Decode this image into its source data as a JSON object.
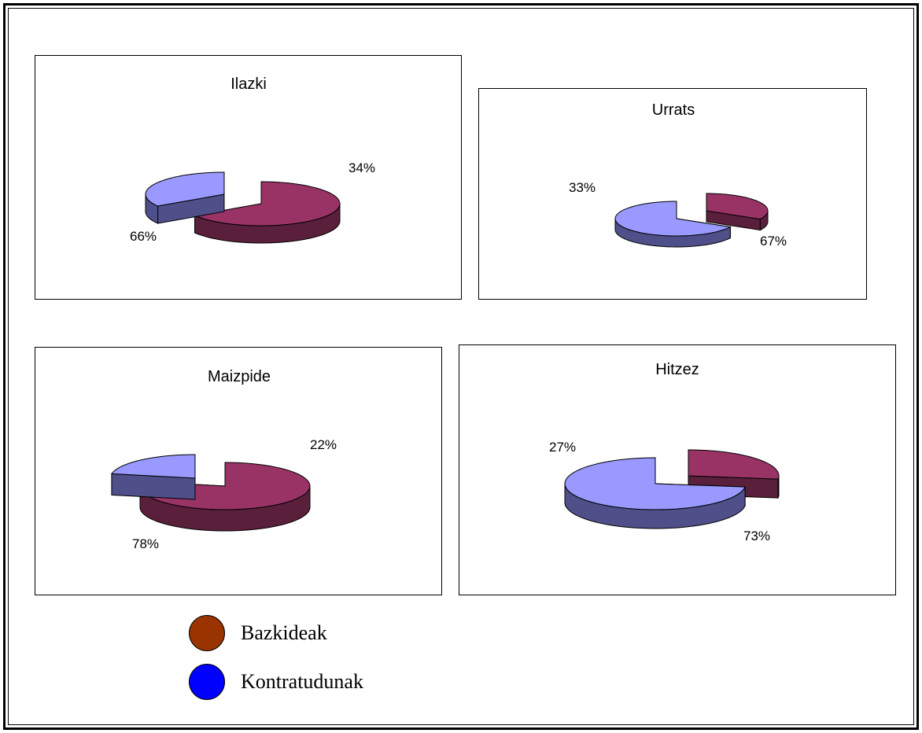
{
  "chart_data": [
    {
      "type": "pie",
      "title": "Ilazki",
      "slices": [
        {
          "name": "Bazkideak",
          "value": 66,
          "label": "66%"
        },
        {
          "name": "Kontratudunak",
          "value": 34,
          "label": "34%"
        }
      ]
    },
    {
      "type": "pie",
      "title": "Urrats",
      "slices": [
        {
          "name": "Bazkideak",
          "value": 33,
          "label": "33%"
        },
        {
          "name": "Kontratudunak",
          "value": 67,
          "label": "67%"
        }
      ]
    },
    {
      "type": "pie",
      "title": "Maizpide",
      "slices": [
        {
          "name": "Bazkideak",
          "value": 78,
          "label": "78%"
        },
        {
          "name": "Kontratudunak",
          "value": 22,
          "label": "22%"
        }
      ]
    },
    {
      "type": "pie",
      "title": "Hitzez",
      "slices": [
        {
          "name": "Bazkideak",
          "value": 27,
          "label": "27%"
        },
        {
          "name": "Kontratudunak",
          "value": 73,
          "label": "73%"
        }
      ]
    }
  ],
  "legend": [
    {
      "label": "Bazkideak",
      "color": "#993300"
    },
    {
      "label": "Kontratudunak",
      "color": "#0000FF"
    }
  ],
  "colors": {
    "bazkideak_top": "#993366",
    "bazkideak_side": "#5a1f3a",
    "kontratudunak_top": "#9999FF",
    "kontratudunak_side": "#4f4f8a"
  }
}
